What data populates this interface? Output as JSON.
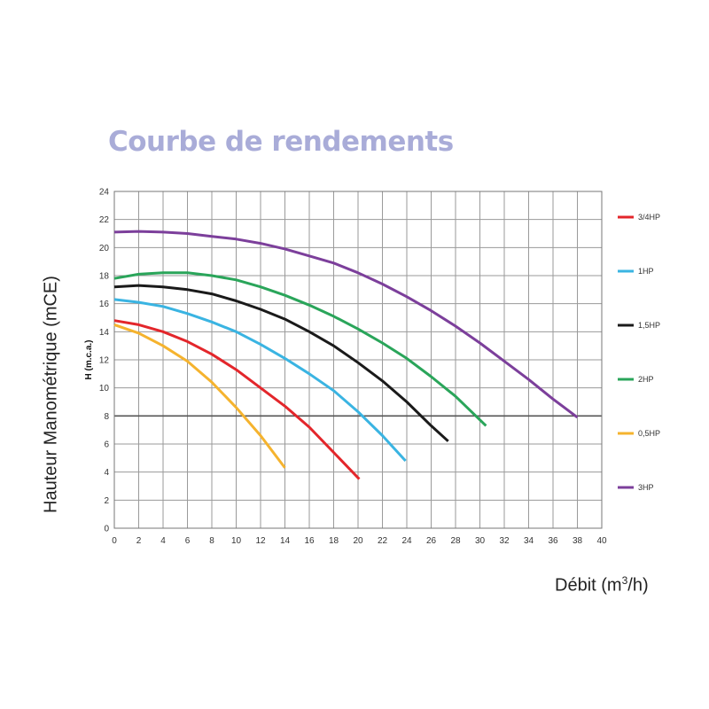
{
  "title": "Courbe de rendements",
  "outer_ylabel": "Hauteur Manométrique (mCE)",
  "outer_xlabel": {
    "text": "Débit (m",
    "sup": "3",
    "suffix": "/h)"
  },
  "chart_data": {
    "type": "line",
    "xlabel": "Débit (m3/h)",
    "ylabel": "H (m.c.a.)",
    "xlim": [
      0,
      40
    ],
    "ylim": [
      0,
      24
    ],
    "xticks": [
      0,
      2,
      4,
      6,
      8,
      10,
      12,
      14,
      16,
      18,
      20,
      22,
      24,
      26,
      28,
      30,
      32,
      34,
      36,
      38,
      40
    ],
    "yticks": [
      0,
      2,
      4,
      6,
      8,
      10,
      12,
      14,
      16,
      18,
      20,
      22,
      24
    ],
    "grid": true,
    "legend_position": "right",
    "series": [
      {
        "name": "3/4HP",
        "color": "#e3262b",
        "x": [
          0,
          2,
          4,
          6,
          8,
          10,
          12,
          14,
          16,
          18,
          20.1
        ],
        "y": [
          14.8,
          14.5,
          14.0,
          13.3,
          12.4,
          11.3,
          10.0,
          8.7,
          7.2,
          5.4,
          3.5
        ]
      },
      {
        "name": "1HP",
        "color": "#3ab4e2",
        "x": [
          0,
          2,
          4,
          6,
          8,
          10,
          12,
          14,
          16,
          18,
          20,
          22,
          23.9
        ],
        "y": [
          16.3,
          16.1,
          15.8,
          15.3,
          14.7,
          14.0,
          13.1,
          12.1,
          11.0,
          9.8,
          8.3,
          6.6,
          4.8
        ]
      },
      {
        "name": "1,5HP",
        "color": "#1a1a1a",
        "x": [
          0,
          2,
          4,
          6,
          8,
          10,
          12,
          14,
          16,
          18,
          20,
          22,
          24,
          26,
          27.4
        ],
        "y": [
          17.2,
          17.3,
          17.2,
          17.0,
          16.7,
          16.2,
          15.6,
          14.9,
          14.0,
          13.0,
          11.8,
          10.5,
          9.0,
          7.3,
          6.2
        ]
      },
      {
        "name": "2HP",
        "color": "#2aa55a",
        "x": [
          0,
          2,
          4,
          6,
          8,
          10,
          12,
          14,
          16,
          18,
          20,
          22,
          24,
          26,
          28,
          30.5
        ],
        "y": [
          17.8,
          18.1,
          18.2,
          18.2,
          18.0,
          17.7,
          17.2,
          16.6,
          15.9,
          15.1,
          14.2,
          13.2,
          12.1,
          10.8,
          9.4,
          7.3
        ]
      },
      {
        "name": "0,5HP",
        "color": "#f5b32e",
        "x": [
          0,
          2,
          4,
          6,
          8,
          10,
          12,
          14
        ],
        "y": [
          14.5,
          13.9,
          13.0,
          11.9,
          10.4,
          8.6,
          6.6,
          4.3
        ]
      },
      {
        "name": "3HP",
        "color": "#7c3f9b",
        "x": [
          0,
          2,
          4,
          6,
          8,
          10,
          12,
          14,
          16,
          18,
          20,
          22,
          24,
          26,
          28,
          30,
          32,
          34,
          36,
          38
        ],
        "y": [
          21.1,
          21.15,
          21.1,
          21.0,
          20.8,
          20.6,
          20.3,
          19.9,
          19.4,
          18.9,
          18.2,
          17.4,
          16.5,
          15.5,
          14.4,
          13.2,
          11.9,
          10.6,
          9.2,
          7.9
        ]
      }
    ]
  }
}
